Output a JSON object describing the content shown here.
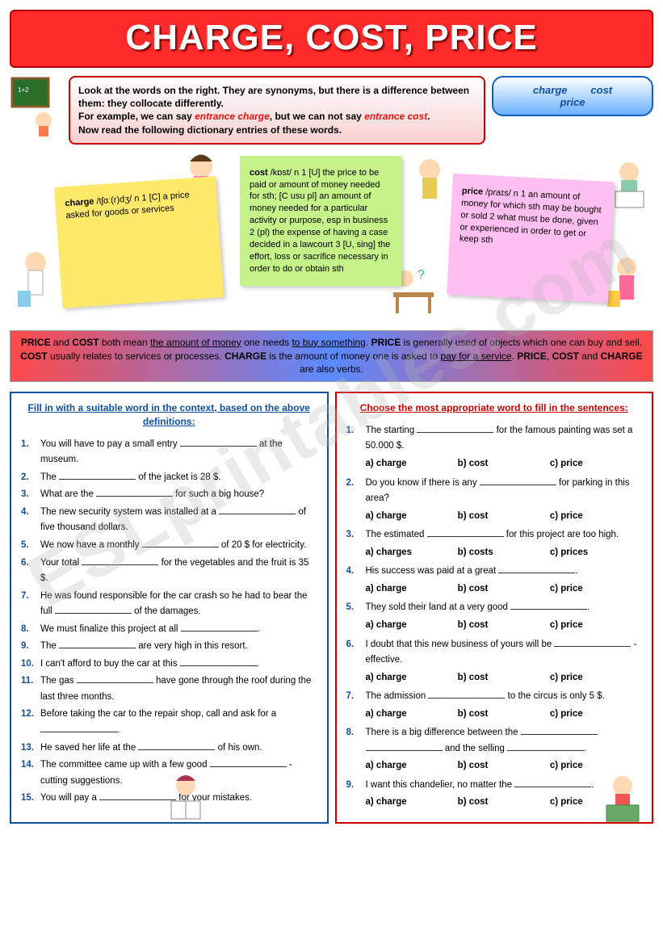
{
  "title": "CHARGE, COST, PRICE",
  "watermark": "ESLprintables.com",
  "intro": {
    "line1": "Look at the words on the right. They are synonyms, but there is a difference between them: they collocate differently.",
    "line2a": "For example, we can say ",
    "ex1": "entrance charge",
    "line2b": ", but we can not say ",
    "ex2": "entrance cost",
    "line3": "Now read the following dictionary entries of these words."
  },
  "pill": {
    "w1": "charge",
    "w2": "cost",
    "w3": "price"
  },
  "sticky1": {
    "head": "charge",
    "phon": "/tʃɑː(r)dʒ/ n 1",
    "body": " [C] a price asked for goods or services"
  },
  "sticky2": {
    "head": "cost",
    "phon": "/kɒst/ n 1",
    "body": " [U] the price to be paid or amount of money needed for sth; [C usu pl] an amount of money needed for a particular activity or purpose, esp in business 2 (pl) the expense of having a case decided in a lawcourt 3 [U, sing] the effort, loss or sacrifice necessary in order to do or obtain sth"
  },
  "sticky3": {
    "head": "price",
    "phon": "/praɪs/ n 1",
    "body": " an amount of money for which sth may be bought or sold 2 what must be done, given or experienced in order to get or keep sth"
  },
  "summary": {
    "t1": "PRICE",
    "t2": "COST",
    "mid1": " both mean ",
    "u1": "the amount of money",
    "mid2": " one needs ",
    "u2": "to buy something",
    "t3": "PRICE",
    "s2": " is generally used of objects which one can buy and sell. ",
    "t4": "COST",
    "s3": " usually relates to services or processes. ",
    "t5": "CHARGE",
    "s4": " is the amount of money one is asked to ",
    "u3": "pay for a service",
    "t6": "PRICE",
    "t7": "COST",
    "t8": "CHARGE",
    "s5": " are also verbs."
  },
  "ex1_head": "Fill in with a suitable word in the context, based on the above definitions:",
  "ex1_items": [
    "You will have to pay a small entry _______________ at the museum.",
    "The _______________ of the jacket is 28 $.",
    "What are the _______________ for such a big house?",
    "The new security system was installed at a ___________ of five thousand dollars.",
    "We now have a monthly _______________ of 20 $ for electricity.",
    "Your total _______________ for the vegetables and the fruit is 35 $.",
    "He was found responsible for the car crash so he had to bear the full ____________ of the damages.",
    "We must finalize this project at all _______________.",
    "The _______________ are very high in this resort.",
    "I can't afford to buy the car at this _______________.",
    "The gas _______________ have gone through the roof during the last three months.",
    "Before taking the car to the repair shop, call and ask for a _____________.",
    "He saved her life at the ____________ of his own.",
    "The committee came up with a few good ____________ - cutting suggestions.",
    "You will pay a _____________ for your mistakes."
  ],
  "ex2_head": "Choose the most appropriate word to fill in the sentences:",
  "ex2_items": [
    {
      "q": "The starting _______________ for the famous painting was set a 50.000 $."
    },
    {
      "q": "Do you know if there is any _______________ for  parking in this area?"
    },
    {
      "q": "The estimated ____________ for this project are too high."
    },
    {
      "q": "His success was paid at a great _____________."
    },
    {
      "q": "They sold their land at a very good ____________."
    },
    {
      "q": "I doubt that this new business of yours will be _________ - effective."
    },
    {
      "q": "The admission _______________ to the circus is only 5 $."
    },
    {
      "q": "There is a big difference between the _______________ ___________ and the selling _______________."
    },
    {
      "q": "I want this chandelier, no matter the _______________."
    }
  ],
  "ex2_q3_opts": {
    "a": "a) charges",
    "b": "b) costs",
    "c": "c) prices"
  },
  "opts": {
    "a": "a) charge",
    "b": "b) cost",
    "c": "c) price"
  }
}
